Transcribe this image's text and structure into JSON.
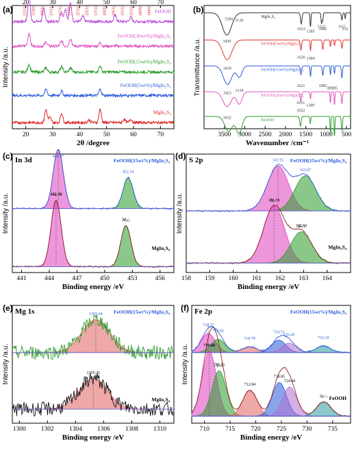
{
  "chart_data": [
    {
      "panel": "(a)",
      "type": "line",
      "xlabel": "2θ /degree",
      "ylabel": "Intensity /a.u.",
      "xlim": [
        15,
        75
      ],
      "x_ticks": [
        20,
        30,
        40,
        50,
        60,
        70
      ],
      "top_ticks": [
        20,
        30,
        40,
        50,
        60,
        70
      ],
      "y_ticks": [],
      "grid": false,
      "offset": [
        95,
        75,
        54,
        35,
        13
      ],
      "series": [
        {
          "name": "FeOOH",
          "color": "#b848d8",
          "peaks": [
            [
              21.2,
              58
            ],
            [
              26.7,
              30
            ],
            [
              33.2,
              22
            ],
            [
              34.7,
              30
            ],
            [
              36.6,
              42
            ],
            [
              41.2,
              12
            ],
            [
              53.2,
              14
            ],
            [
              59.0,
              10
            ]
          ]
        },
        {
          "name": "FeOOH(30wt%)/MgIn₂S₄",
          "color": "#e050c0",
          "peaks": [
            [
              21.2,
              30
            ],
            [
              27.5,
              10
            ],
            [
              33.3,
              12
            ],
            [
              36.6,
              18
            ],
            [
              47.6,
              8
            ]
          ]
        },
        {
          "name": "FeOOH(15wt%)/MgIn₂S₄",
          "color": "#2a9a2a",
          "peaks": [
            [
              21.2,
              18
            ],
            [
              27.5,
              10
            ],
            [
              33.3,
              12
            ],
            [
              36.6,
              10
            ],
            [
              47.6,
              14
            ]
          ]
        },
        {
          "name": "FeOOH(5wt%)/MgIn₂S₄",
          "color": "#2a5ad8",
          "peaks": [
            [
              27.5,
              14
            ],
            [
              33.3,
              10
            ],
            [
              47.6,
              14
            ]
          ]
        },
        {
          "name": "MgIn₂S₄",
          "color": "#e02020",
          "peaks": [
            [
              27.5,
              30
            ],
            [
              29.0,
              12
            ],
            [
              33.3,
              22
            ],
            [
              47.6,
              30
            ],
            [
              43.5,
              6
            ],
            [
              56.5,
              8
            ],
            [
              59.0,
              8
            ]
          ]
        }
      ],
      "annotations": [
        "(111)",
        "(130)",
        "(021)",
        "(111)",
        "(121)",
        "(140)",
        "(211)",
        "(221)",
        "(151)",
        "(002)",
        "(061)",
        "(331)",
        "(511)",
        "(400)",
        "(440)"
      ]
    },
    {
      "panel": "(b)",
      "type": "line",
      "xlabel": "Wavenumber /cm⁻¹",
      "ylabel": "Transmittance /a.u.",
      "xlim": [
        4000,
        400
      ],
      "x_ticks": [
        3500,
        3000,
        2500,
        2000,
        1500,
        1000,
        500
      ],
      "grid": false,
      "offset": [
        88,
        66,
        45,
        24,
        4
      ],
      "series": [
        {
          "name": "MgIn₂S₄",
          "color": "#303030",
          "dips": [
            [
              3439,
              18,
              260
            ],
            [
              1612,
              9,
              40
            ],
            [
              1385,
              12,
              25
            ],
            [
              1112,
              9,
              30
            ],
            [
              1082,
              6,
              20
            ],
            [
              612,
              6,
              30
            ],
            [
              532,
              5,
              20
            ]
          ]
        },
        {
          "name": "FeOOH(5wt%)/MgIn₂S₄",
          "color": "#e03030",
          "dips": [
            [
              3430,
              16,
              260
            ],
            [
              1620,
              8,
              40
            ],
            [
              1384,
              9,
              25
            ],
            [
              1082,
              8,
              30
            ],
            [
              895,
              6,
              20
            ],
            [
              795,
              5,
              20
            ],
            [
              612,
              7,
              30
            ]
          ]
        },
        {
          "name": "FeOOH(15wt%)/MgIn₂S₄",
          "color": "#2a5ad8",
          "dips": [
            [
              3421,
              15,
              240
            ],
            [
              3134,
              9,
              150
            ],
            [
              1621,
              7,
              40
            ],
            [
              1384,
              9,
              25
            ],
            [
              1082,
              8,
              30
            ],
            [
              895,
              8,
              20
            ],
            [
              795,
              7,
              20
            ],
            [
              612,
              10,
              30
            ]
          ]
        },
        {
          "name": "FeOOH(20wt%)/MgIn₂S₄",
          "color": "#e050c0",
          "dips": [
            [
              3432,
              12,
              240
            ],
            [
              3134,
              10,
              150
            ],
            [
              1622,
              8,
              40
            ],
            [
              1384,
              6,
              25
            ],
            [
              895,
              10,
              20
            ],
            [
              795,
              12,
              20
            ],
            [
              612,
              10,
              30
            ]
          ]
        },
        {
          "name": "FeOOH",
          "color": "#2a9a2a",
          "dips": [
            [
              3394,
              12,
              220
            ],
            [
              3139,
              14,
              160
            ],
            [
              1633,
              8,
              40
            ],
            [
              1389,
              6,
              25
            ],
            [
              895,
              16,
              20
            ],
            [
              795,
              18,
              20
            ],
            [
              612,
              12,
              30
            ]
          ]
        }
      ],
      "annotations": [
        "3439",
        "1612",
        "1385",
        "1112",
        "1082",
        "612",
        "532",
        "3430",
        "1620",
        "1384",
        "3421",
        "3134",
        "1621",
        "1082",
        "895",
        "795",
        "3432",
        "1622",
        "3394",
        "3139",
        "1633",
        "1389"
      ]
    },
    {
      "panel": "(c)",
      "type": "line",
      "title": "In 3d",
      "xlabel": "Binding energy /eV",
      "ylabel": "Intensity /a.u.",
      "xlim": [
        440,
        457.5
      ],
      "x_ticks": [
        441,
        444,
        447,
        450,
        453,
        456
      ],
      "grid": false,
      "upper_label": "FeOOH(15wt%)/MgIn₂S₄",
      "lower_label": "MgIn₂S₄",
      "upper": {
        "peaks": [
          [
            444.97,
            1.0,
            "#e040c0"
          ],
          [
            452.54,
            0.52,
            "#2a9a2a"
          ]
        ],
        "base": 54,
        "amp": 50
      },
      "lower": {
        "peaks": [
          [
            444.74,
            1.0,
            "#e040c0"
          ],
          [
            452.3,
            0.62,
            "#2a9a2a"
          ]
        ],
        "base": 5,
        "amp": 56
      },
      "annotations": [
        "444.97",
        "452.54",
        "444.74",
        "3d₅/₂",
        "452.30",
        "3d₃/₂"
      ]
    },
    {
      "panel": "(d)",
      "type": "line",
      "title": "S 2p",
      "xlabel": "Binding energy /eV",
      "ylabel": "Intensity /a.u.",
      "xlim": [
        158,
        165
      ],
      "x_ticks": [
        158,
        159,
        160,
        161,
        162,
        163,
        164
      ],
      "grid": false,
      "upper_label": "FeOOH(15wt%)/MgIn₂S₄",
      "lower_label": "MgIn₂S₄",
      "upper": {
        "peaks": [
          [
            161.91,
            1.0,
            "#e040c0"
          ],
          [
            163.07,
            0.78,
            "#2a9a2a"
          ]
        ],
        "base": 52,
        "amp": 38
      },
      "lower": {
        "peaks": [
          [
            161.74,
            1.0,
            "#e040c0"
          ],
          [
            162.9,
            0.55,
            "#2a9a2a"
          ]
        ],
        "base": 8,
        "amp": 48
      },
      "annotations": [
        "161.91",
        "163.07",
        "161.74",
        "2p₃/₂",
        "2p₁/₂",
        "162.90"
      ]
    },
    {
      "panel": "(e)",
      "type": "line",
      "title": "Mg 1s",
      "xlabel": "Binding energy /eV",
      "ylabel": "Intensity /a.u.",
      "xlim": [
        1299.5,
        1311
      ],
      "x_ticks": [
        1300,
        1302,
        1304,
        1306,
        1308,
        1310
      ],
      "grid": false,
      "upper_label": "FeOOH(15wt%)/MgIn₂S₄",
      "lower_label": "MgIn₂S₄",
      "upper": {
        "peaks": [
          [
            1305.44,
            1.0,
            "#e06060"
          ]
        ],
        "base": 60,
        "amp": 28
      },
      "lower": {
        "peaks": [
          [
            1305.26,
            1.0,
            "#e06060"
          ]
        ],
        "base": 12,
        "amp": 26
      },
      "annotations": [
        "1305.44",
        "1305.26"
      ]
    },
    {
      "panel": "(f)",
      "type": "line",
      "title": "Fe 2p",
      "xlabel": "Binding energy /eV",
      "ylabel": "Intensity /a.u.",
      "xlim": [
        707.5,
        738.5
      ],
      "x_ticks": [
        710,
        715,
        720,
        725,
        730,
        735
      ],
      "grid": false,
      "upper_label": "FeOOH(15wt%)/MgIn₂S₄",
      "lower_label": "FeOOH",
      "upper": {
        "peaks": [
          [
            710.72,
            0.65,
            "#e040c0"
          ],
          [
            712.65,
            0.45,
            "#2a9a2a"
          ],
          [
            718.79,
            0.2,
            "#e06060"
          ],
          [
            724.51,
            0.42,
            "#2a5ad8"
          ],
          [
            726.49,
            0.32,
            "#b070d0"
          ],
          [
            733.18,
            0.22,
            "#2a9aa0"
          ]
        ],
        "base": 60,
        "amp": 25
      },
      "lower": {
        "peaks": [
          [
            710.94,
            1.0,
            "#e040c0"
          ],
          [
            712.84,
            0.7,
            "#2a9a2a"
          ],
          [
            718.85,
            0.4,
            "#e06060"
          ],
          [
            724.6,
            0.52,
            "#2a5ad8"
          ],
          [
            726.62,
            0.45,
            "#b070d0"
          ],
          [
            733.25,
            0.22,
            "#2a9aa0"
          ]
        ],
        "base": 6,
        "amp": 55
      },
      "annotations": [
        "710.72",
        "712.65",
        "718.79",
        "724.51",
        "726.49",
        "733.18",
        "710.94",
        "2p₃/₂",
        "712.84",
        "718.85",
        "724.60",
        "2p₁/₂",
        "726.62",
        "733.25"
      ]
    }
  ]
}
